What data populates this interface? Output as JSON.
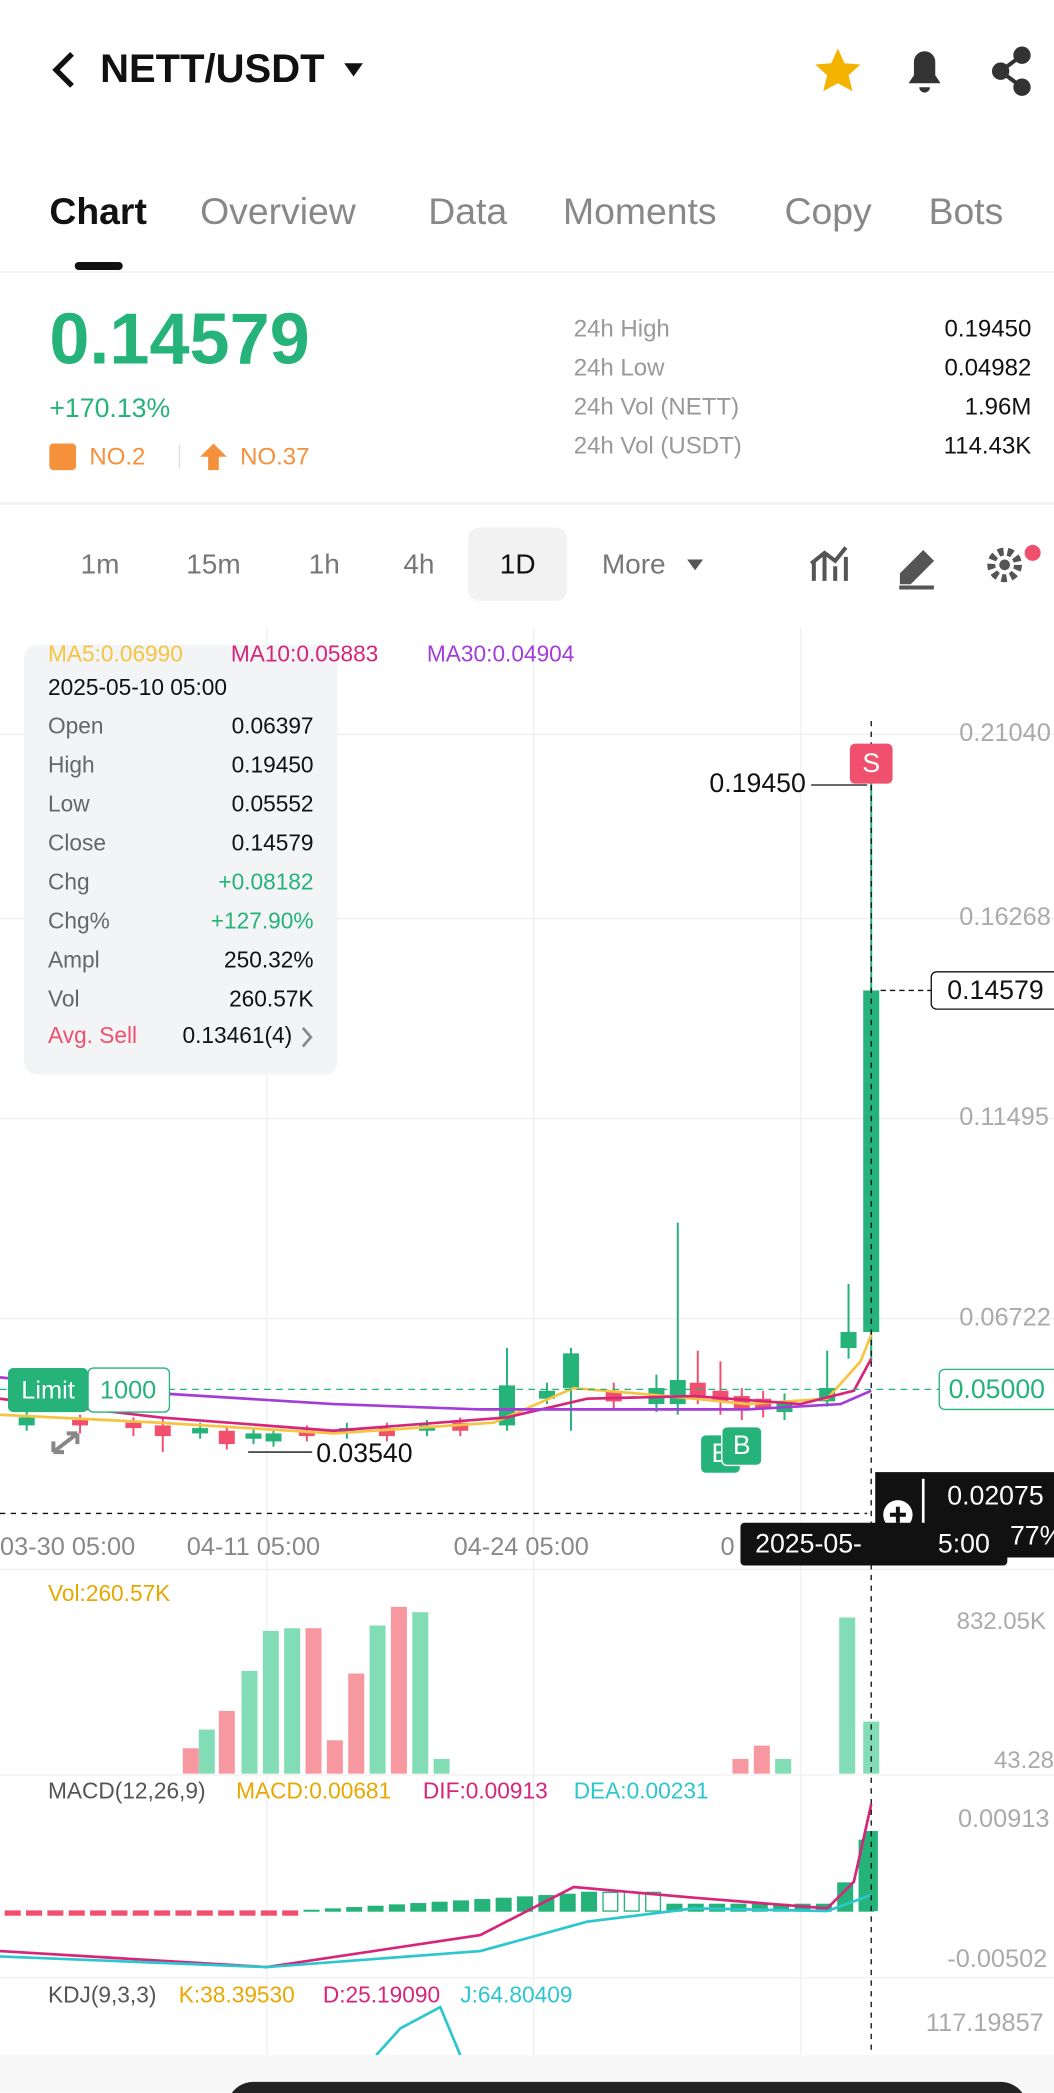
{
  "header": {
    "pair": "NETT/USDT"
  },
  "tabs": [
    "Chart",
    "Overview",
    "Data",
    "Moments",
    "Copy",
    "Bots"
  ],
  "price": {
    "last": "0.14579",
    "change": "+170.13%",
    "rank_a": "NO.2",
    "rank_b": "NO.37"
  },
  "stats": [
    {
      "label": "24h High",
      "value": "0.19450"
    },
    {
      "label": "24h Low",
      "value": "0.04982"
    },
    {
      "label": "24h Vol (NETT)",
      "value": "1.96M"
    },
    {
      "label": "24h Vol (USDT)",
      "value": "114.43K"
    }
  ],
  "intervals": [
    "1m",
    "15m",
    "1h",
    "4h",
    "1D",
    "More"
  ],
  "ma": [
    "MA5:0.06990",
    "MA10:0.05883",
    "MA30:0.04904"
  ],
  "tooltip": {
    "date": "2025-05-10 05:00",
    "rows": [
      [
        "Open",
        "0.06397"
      ],
      [
        "High",
        "0.19450"
      ],
      [
        "Low",
        "0.05552"
      ],
      [
        "Close",
        "0.14579"
      ],
      [
        "Chg",
        "+0.08182"
      ],
      [
        "Chg%",
        "+127.90%"
      ],
      [
        "Ampl",
        "250.32%"
      ],
      [
        "Vol",
        "260.57K"
      ]
    ],
    "avg_label": "Avg. Sell",
    "avg_value": "0.13461(4)"
  },
  "price_axis": [
    "0.21040",
    "0.16268",
    "0.11495",
    "0.06722"
  ],
  "annotations": {
    "high": "0.19450",
    "low": "0.03540",
    "current": "0.14579",
    "limit": "Limit",
    "limit_qty": "1000",
    "limit_price": "0.05000",
    "cross_price": "0.02075",
    "cross_pct": "77%",
    "cross_date": "2025-05-",
    "cross_time": "5:00",
    "sell": "S",
    "buy_a": "B",
    "buy_b": "B"
  },
  "time_axis": [
    "03-30 05:00",
    "04-11 05:00",
    "04-24 05:00",
    "0"
  ],
  "volume": {
    "label": "Vol:260.57K",
    "axis": [
      "832.05K",
      "43.28"
    ]
  },
  "macd": {
    "title": "MACD(12,26,9)",
    "macd": "MACD:0.00681",
    "dif": "DIF:0.00913",
    "dea": "DEA:0.00231",
    "axis": [
      "0.00913",
      "-0.00502"
    ]
  },
  "kdj": {
    "title": "KDJ(9,3,3)",
    "k": "K:38.39530",
    "d": "D:25.19090",
    "j": "J:64.80409",
    "axis": [
      "117.19857"
    ]
  }
}
